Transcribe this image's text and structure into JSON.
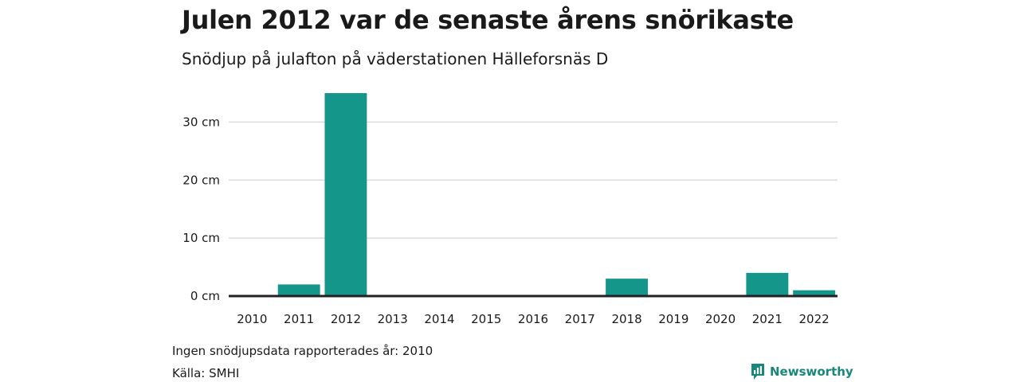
{
  "title": "Julen 2012 var de senaste årens snörikaste",
  "subtitle": "Snödjup på julafton på väderstationen Hälleforsnäs D",
  "note": "Ingen snödjupsdata rapporterades år: 2010",
  "source": "Källa: SMHI",
  "brand": "Newsworthy",
  "colors": {
    "bar": "#15968a",
    "brand": "#17877a",
    "grid": "#dcdcdc",
    "axis": "#222222"
  },
  "chart_data": {
    "type": "bar",
    "categories": [
      "2010",
      "2011",
      "2012",
      "2013",
      "2014",
      "2015",
      "2016",
      "2017",
      "2018",
      "2019",
      "2020",
      "2021",
      "2022"
    ],
    "values": [
      null,
      2,
      35,
      0,
      0,
      0,
      0,
      0,
      3,
      0,
      0,
      4,
      1
    ],
    "unit": "cm",
    "ylim": [
      0,
      35
    ],
    "yticks": [
      0,
      10,
      20,
      30
    ],
    "ytick_labels": [
      "0 cm",
      "10 cm",
      "20 cm",
      "30 cm"
    ],
    "grid": true
  }
}
